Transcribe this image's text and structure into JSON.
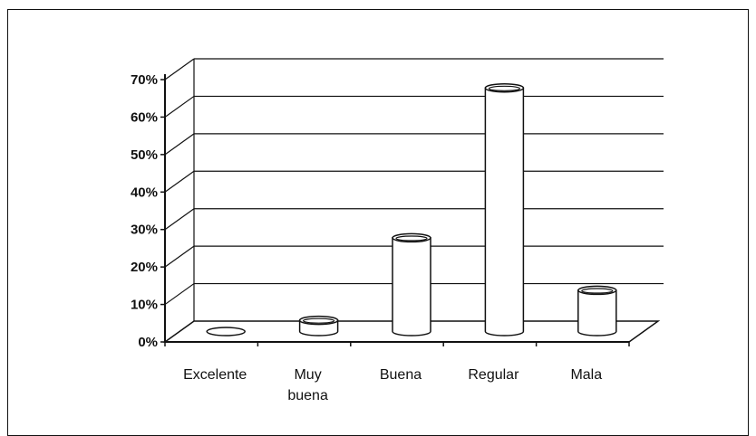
{
  "chart_data": {
    "type": "bar",
    "style": "3d-cylinder",
    "categories": [
      [
        "Excelente"
      ],
      [
        "Muy",
        "buena"
      ],
      [
        "Buena"
      ],
      [
        "Regular"
      ],
      [
        "Mala"
      ]
    ],
    "values": [
      0,
      3,
      25,
      65,
      11
    ],
    "ylim": [
      0,
      70
    ],
    "yticks": [
      "0%",
      "10%",
      "20%",
      "30%",
      "40%",
      "50%",
      "60%",
      "70%"
    ],
    "grid": true,
    "legend": "none"
  }
}
